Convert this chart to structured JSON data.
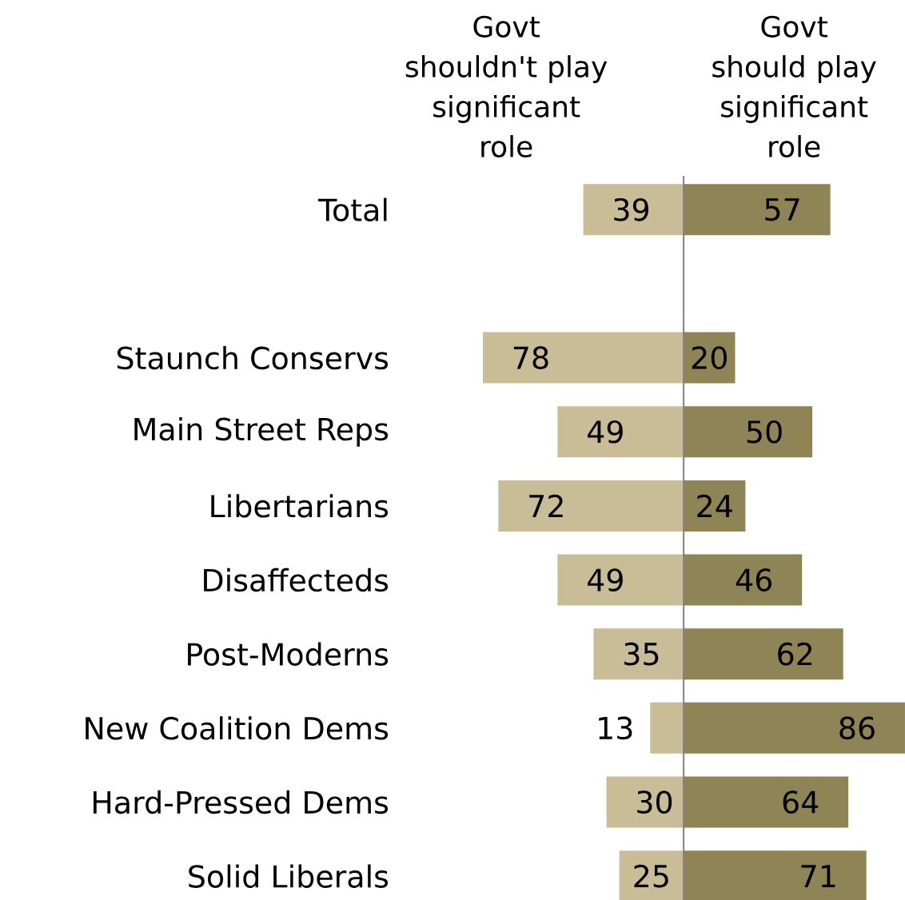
{
  "chart_data": [
    {
      "type": "bar",
      "orientation": "horizontal",
      "categories": [
        "Total",
        null,
        "Staunch Conservs",
        "Main Street Reps",
        "Libertarians",
        "Disaffecteds",
        "Post-Moderns",
        "New Coalition Dems",
        "Hard-Pressed Dems",
        "Solid Liberals"
      ],
      "tick_labels": "y",
      "data_labels": true,
      "series": [
        {
          "name": "Govt shouldn't play significant role",
          "color": "#c9bd98",
          "values": [
            39,
            null,
            78,
            49,
            72,
            49,
            35,
            13,
            30,
            25
          ]
        }
      ]
    },
    {
      "type": "bar",
      "orientation": "horizontal",
      "categories": [
        null,
        null,
        null,
        null,
        null,
        null,
        null,
        null,
        null,
        null
      ],
      "data_labels": true,
      "series": [
        {
          "name": "Govt should play significant role",
          "color": "#8e8455",
          "values": [
            57,
            null,
            20,
            50,
            24,
            46,
            62,
            86,
            64,
            71
          ]
        }
      ]
    }
  ]
}
